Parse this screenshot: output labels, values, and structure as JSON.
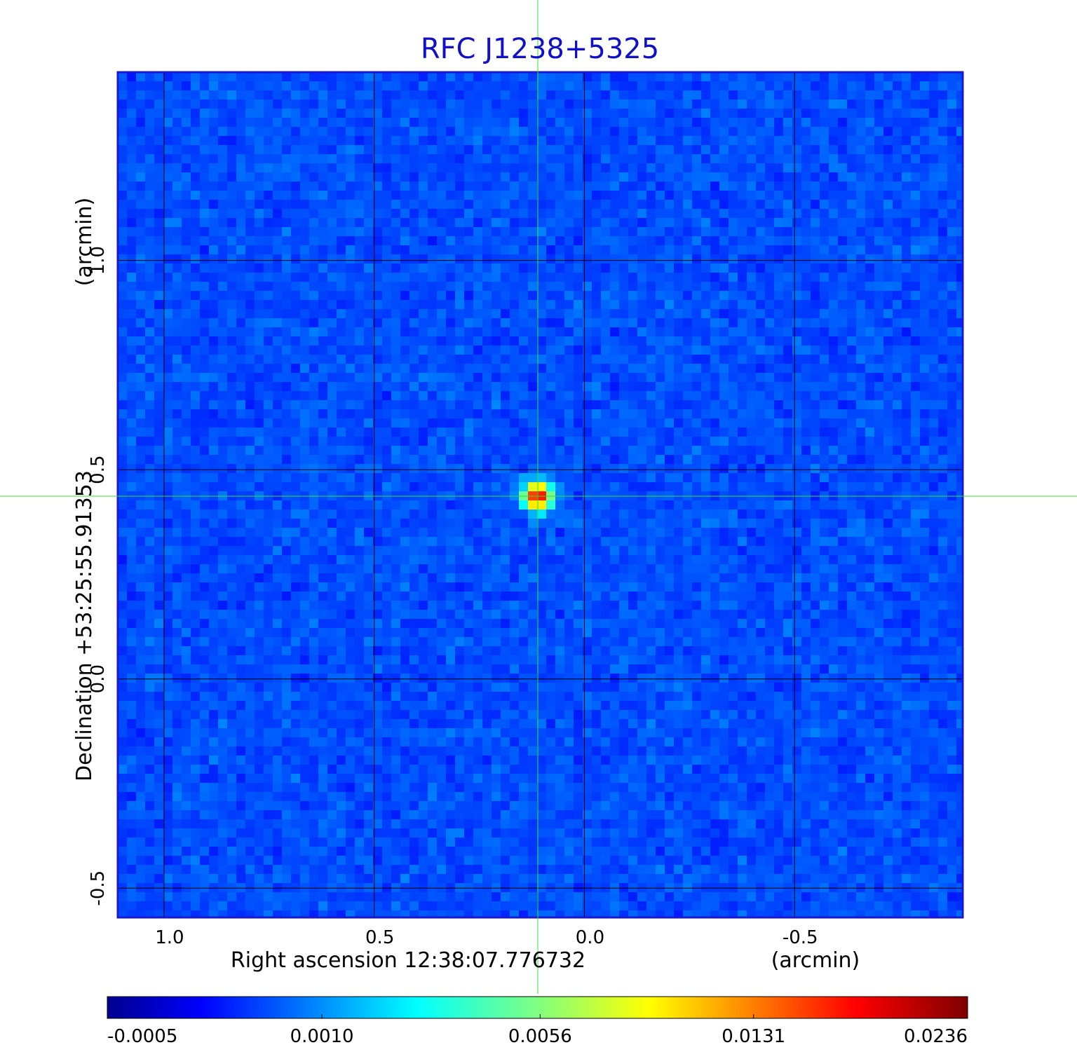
{
  "chart_data": {
    "type": "image",
    "title": "RFC J1238+5325",
    "xlabel": "Right ascension  12:38:07.776732",
    "xunit": "(arcmin)",
    "ylabel": "Declination  +53:25:55.91353",
    "yunit": "(arcmin)",
    "xlim": [
      1.11,
      -0.9
    ],
    "ylim": [
      -0.57,
      1.45
    ],
    "xticks": [
      {
        "value": 1,
        "label": "1.0"
      },
      0.5,
      {
        "value": 0,
        "label": "0.0"
      },
      -0.5
    ],
    "yticks": [
      -0.5,
      {
        "value": 0,
        "label": "0.0"
      },
      0.5,
      {
        "value": 1,
        "label": "1.0"
      }
    ],
    "grid": true,
    "colorbar": {
      "scale": "sqrt",
      "lim": [
        -0.0005,
        0.0236
      ],
      "ticks": [
        -0.0005,
        {
          "value": 0.001,
          "label": "0.0010"
        },
        0.0056,
        0.0131,
        0.0236
      ]
    }
  }
}
